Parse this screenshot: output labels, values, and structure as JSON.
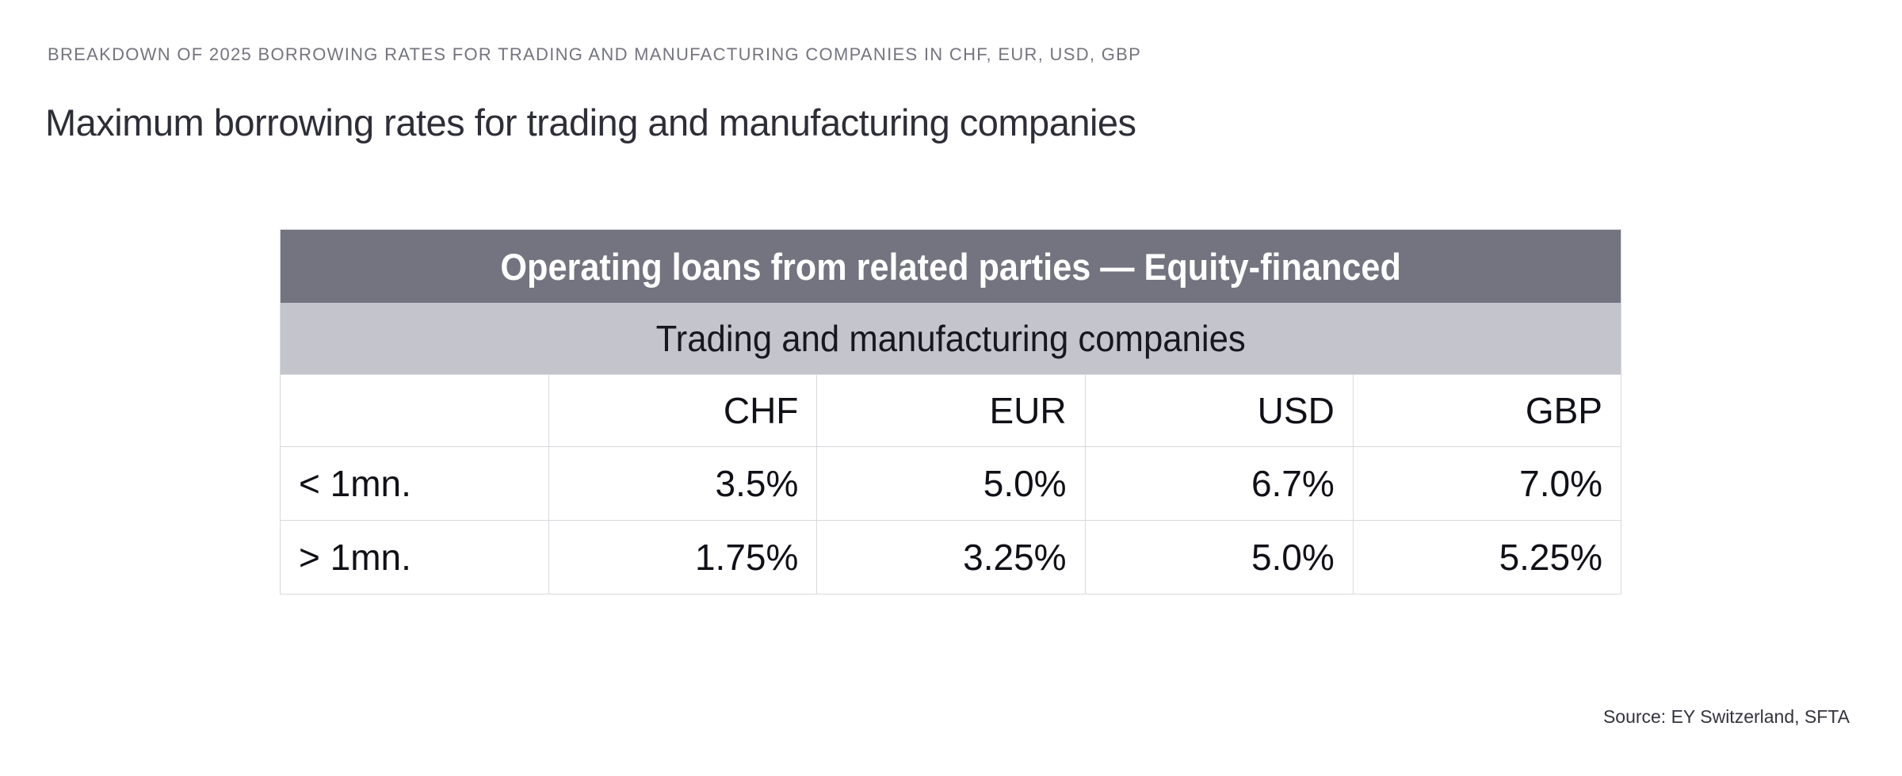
{
  "page": {
    "kicker": "BREAKDOWN OF 2025 BORROWING RATES FOR TRADING AND MANUFACTURING COMPANIES IN CHF, EUR, USD, GBP",
    "title": "Maximum borrowing rates for trading and manufacturing companies",
    "source": "Source: EY Switzerland, SFTA"
  },
  "table": {
    "header": "Operating loans from related parties — Equity-financed",
    "subheader": "Trading and manufacturing companies",
    "columns": [
      "",
      "CHF",
      "EUR",
      "USD",
      "GBP"
    ],
    "rows": [
      {
        "label": "< 1mn.",
        "values": [
          "3.5%",
          "5.0%",
          "6.7%",
          "7.0%"
        ]
      },
      {
        "label": "> 1mn.",
        "values": [
          "1.75%",
          "3.25%",
          "5.0%",
          "5.25%"
        ]
      }
    ]
  },
  "colors": {
    "header_bar": "#747480",
    "subheader_bar": "#c4c4cd",
    "header_text": "#ffffff",
    "body_text": "#101018",
    "kicker_text": "#747480",
    "title_text": "#2e2e38",
    "grid_border": "#d9d9df"
  },
  "chart_data": {
    "type": "table",
    "title": "Operating loans from related parties — Equity-financed",
    "subtitle": "Trading and manufacturing companies",
    "page_title": "Maximum borrowing rates for trading and manufacturing companies",
    "columns": [
      "CHF",
      "EUR",
      "USD",
      "GBP"
    ],
    "rows": [
      {
        "category": "< 1mn.",
        "values_pct": [
          3.5,
          5.0,
          6.7,
          7.0
        ]
      },
      {
        "category": "> 1mn.",
        "values_pct": [
          1.75,
          3.25,
          5.0,
          5.25
        ]
      }
    ],
    "units": "percent",
    "source": "EY Switzerland, SFTA",
    "year": 2025
  }
}
